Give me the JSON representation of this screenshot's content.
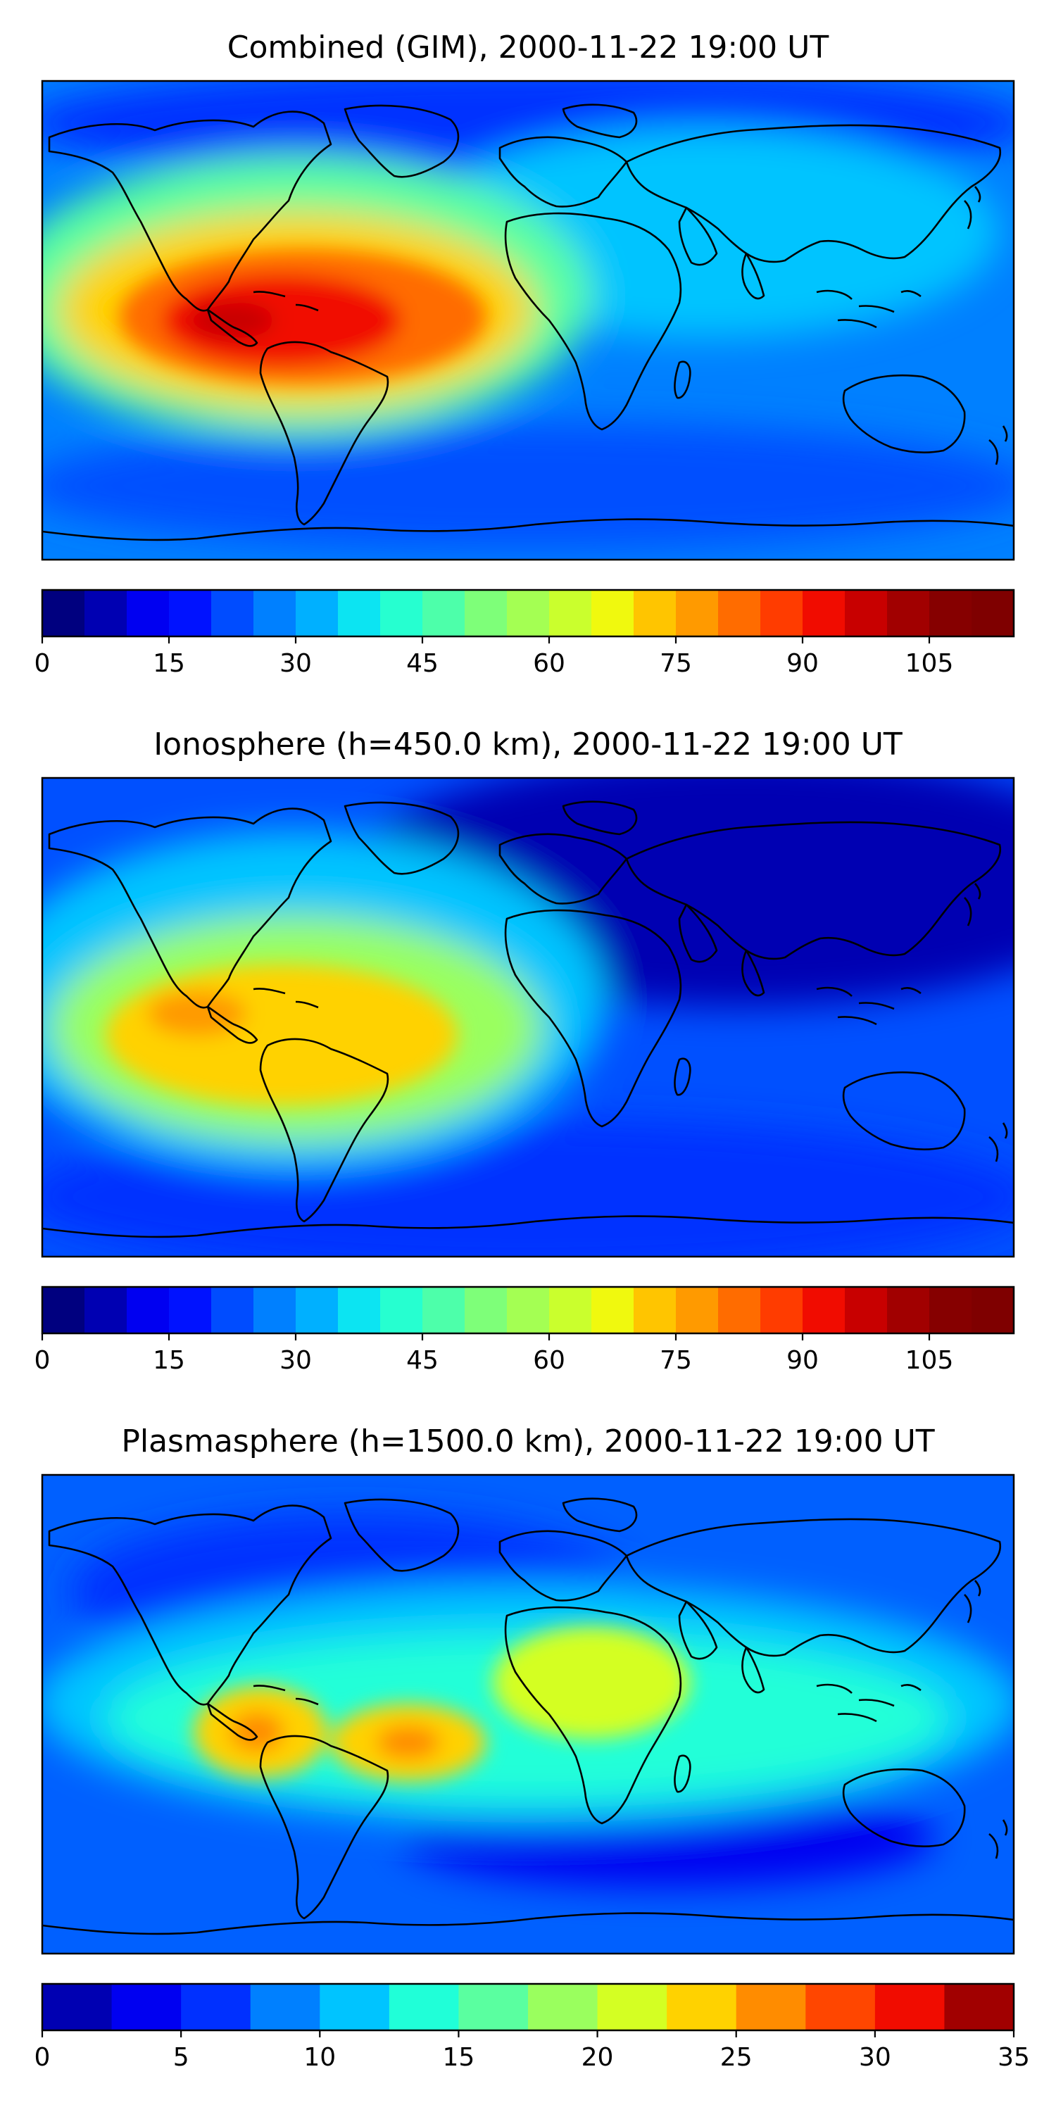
{
  "figure": {
    "layout": "three stacked map panels, each with a horizontal colorbar below"
  },
  "chart_data": [
    {
      "type": "heatmap",
      "title": "Combined (GIM), 2000-11-22 19:00 UT",
      "colorbar": {
        "ticks": [
          "0",
          "15",
          "30",
          "45",
          "60",
          "75",
          "90",
          "105"
        ],
        "range": [
          0,
          115
        ],
        "levels": [
          0,
          5,
          10,
          15,
          20,
          25,
          30,
          35,
          40,
          45,
          50,
          55,
          60,
          65,
          70,
          75,
          80,
          85,
          90,
          95,
          100,
          105,
          110,
          115
        ],
        "colors": [
          "#00007f",
          "#0000b2",
          "#0000f1",
          "#0012ff",
          "#004cff",
          "#0080ff",
          "#00b0ff",
          "#0ce4f2",
          "#26ffd0",
          "#4dffaa",
          "#7eff79",
          "#a4ff53",
          "#caff2d",
          "#f0f90e",
          "#ffc500",
          "#ff9a00",
          "#ff6c00",
          "#ff3c00",
          "#f10c00",
          "#c80000",
          "#a10000",
          "#860000",
          "#7f0000"
        ]
      },
      "features": {
        "hotspot_color": "#c80000",
        "description": "Strong equatorial anomaly peak over South America and the eastern Pacific"
      }
    },
    {
      "type": "heatmap",
      "title": "Ionosphere  (h=450.0 km), 2000-11-22 19:00 UT",
      "colorbar": {
        "ticks": [
          "0",
          "15",
          "30",
          "45",
          "60",
          "75",
          "90",
          "105"
        ],
        "range": [
          0,
          115
        ],
        "levels": [
          0,
          5,
          10,
          15,
          20,
          25,
          30,
          35,
          40,
          45,
          50,
          55,
          60,
          65,
          70,
          75,
          80,
          85,
          90,
          95,
          100,
          105,
          110,
          115
        ],
        "colors": [
          "#00007f",
          "#0000b2",
          "#0000f1",
          "#0012ff",
          "#004cff",
          "#0080ff",
          "#00b0ff",
          "#0ce4f2",
          "#26ffd0",
          "#4dffaa",
          "#7eff79",
          "#a4ff53",
          "#caff2d",
          "#f0f90e",
          "#ffc500",
          "#ff9a00",
          "#ff6c00",
          "#ff3c00",
          "#f10c00",
          "#c80000",
          "#a10000",
          "#860000",
          "#7f0000"
        ]
      },
      "features": {
        "hotspot_color": "#ff9a00",
        "description": "Moderate peak over South America, low values over Eurasia"
      }
    },
    {
      "type": "heatmap",
      "title": "Plasmasphere (h=1500.0 km), 2000-11-22 19:00 UT",
      "colorbar": {
        "ticks": [
          "0",
          "5",
          "10",
          "15",
          "20",
          "25",
          "30",
          "35"
        ],
        "range": [
          0,
          35
        ],
        "levels": [
          0,
          2.5,
          5,
          7.5,
          10,
          12.5,
          15,
          17.5,
          20,
          22.5,
          25,
          27.5,
          30,
          32.5,
          35
        ],
        "colors": [
          "#0000b2",
          "#0000f1",
          "#0030ff",
          "#0080ff",
          "#00c4ff",
          "#20ffd8",
          "#5affa0",
          "#9aff5e",
          "#d4ff23",
          "#ffd200",
          "#ff8c00",
          "#ff4600",
          "#f10c00",
          "#a10000"
        ]
      },
      "features": {
        "hotspot_color": "#ff8c00",
        "description": "Secondary peaks over eastern Pacific, Brazil and northern Africa"
      }
    }
  ]
}
